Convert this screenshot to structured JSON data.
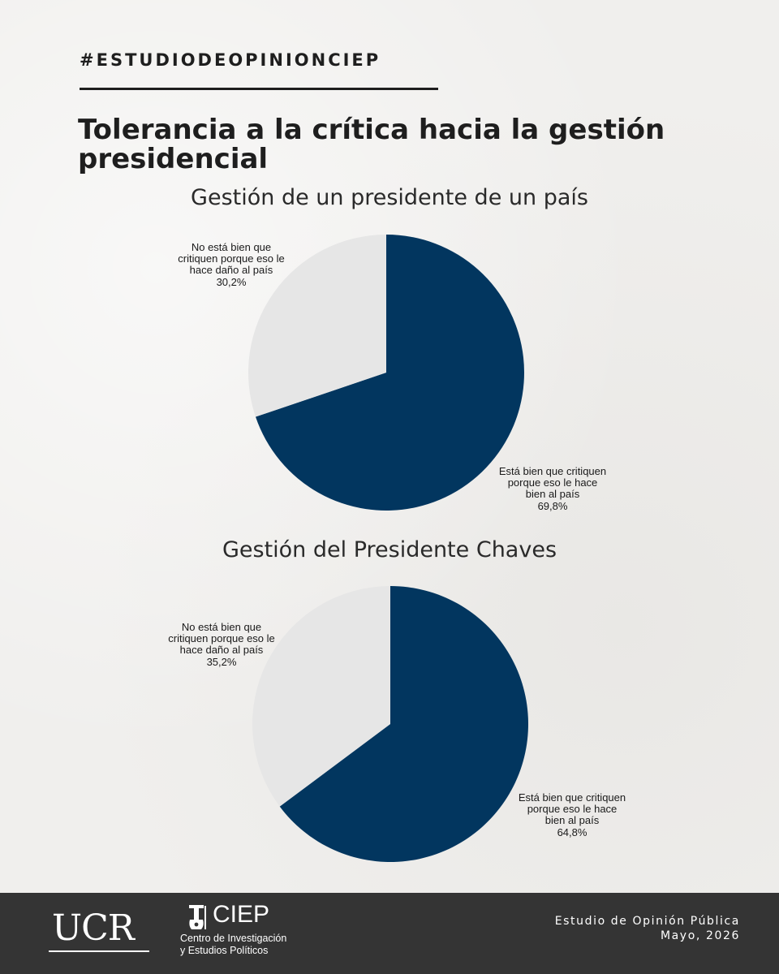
{
  "header": {
    "hashtag": "#ESTUDIODEOPINIONCIEP",
    "title_line1": "Tolerancia a la crítica hacia la gestión",
    "title_line2": "presidencial"
  },
  "colors": {
    "navy": "#02365f",
    "light": "#e6e6e6",
    "footer": "#343434"
  },
  "chart_data": [
    {
      "type": "pie",
      "title": "Gestión de un presidente de un país",
      "slices": [
        {
          "label": "Está bien que critiquen porque eso le hace bien al país",
          "label_lines": [
            "Está bien que critiquen",
            "porque eso le hace",
            "bien al país"
          ],
          "value": 69.8,
          "value_label": "69,8%",
          "color": "#02365f"
        },
        {
          "label": "No está bien que critiquen porque eso le hace daño al país",
          "label_lines": [
            "No está bien que",
            "critiquen porque eso le",
            "hace daño al país"
          ],
          "value": 30.2,
          "value_label": "30,2%",
          "color": "#e6e6e6"
        }
      ]
    },
    {
      "type": "pie",
      "title": "Gestión del Presidente Chaves",
      "slices": [
        {
          "label": "Está bien que critiquen porque eso le hace bien al país",
          "label_lines": [
            "Está bien que critiquen",
            "porque eso le hace",
            "bien al país"
          ],
          "value": 64.8,
          "value_label": "64,8%",
          "color": "#02365f"
        },
        {
          "label": "No está bien que critiquen porque eso le hace daño al país",
          "label_lines": [
            "No está bien que",
            "critiquen porque eso le",
            "hace daño al país"
          ],
          "value": 35.2,
          "value_label": "35,2%",
          "color": "#e6e6e6"
        }
      ]
    }
  ],
  "footer": {
    "ucr": "UCR",
    "ciep": "CIEP",
    "ciep_line1": "Centro de Investigación",
    "ciep_line2": "y Estudios Políticos",
    "study_line1": "Estudio de Opinión Pública",
    "study_line2": "Mayo, 2026"
  }
}
